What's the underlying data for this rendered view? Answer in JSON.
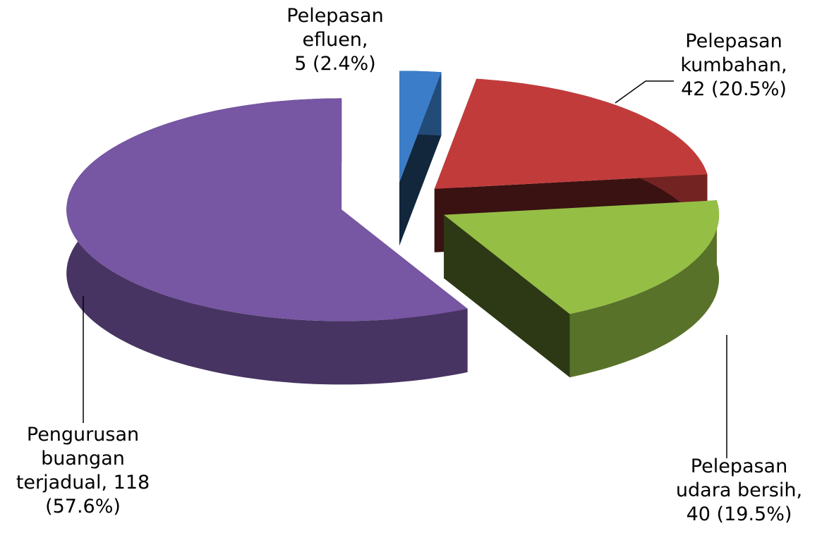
{
  "chart_data": {
    "type": "pie3d",
    "labels": [
      "Pelepasan\nefluen,\n5 (2.4%)",
      "Pelepasan\nkumbahan,\n42 (20.5%)",
      "Pelepasan\nudara bersih,\n40 (19.5%)",
      "Pengurusan\nbuangan\nterjadual, 118\n(57.6%)"
    ],
    "values": [
      5,
      42,
      40,
      118
    ],
    "colors": [
      "#3b7dc8",
      "#c23b3b",
      "#95be45",
      "#7756a3"
    ]
  }
}
